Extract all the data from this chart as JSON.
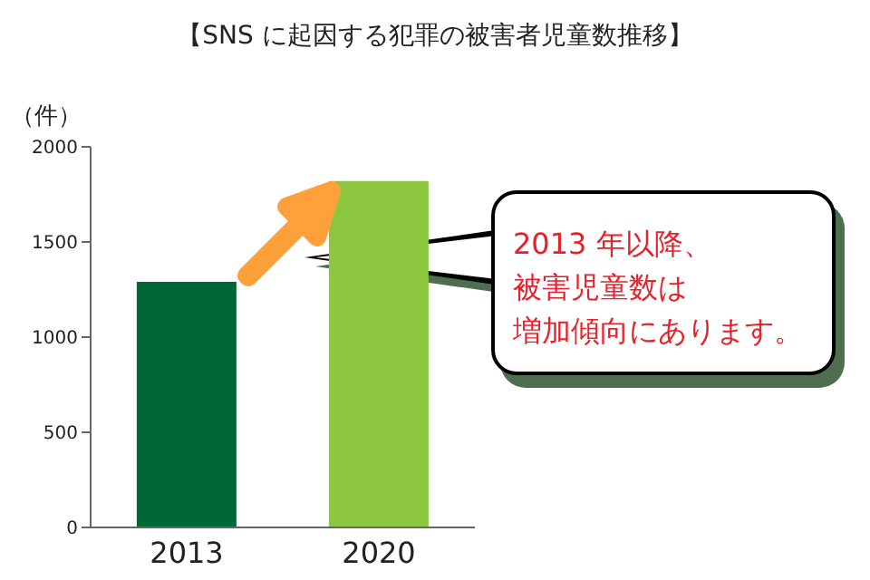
{
  "chart_data": {
    "type": "bar",
    "title": "【SNS に起因する犯罪の被害者児童数推移】",
    "ylabel": "（件）",
    "categories": [
      "2013",
      "2020"
    ],
    "values": [
      1290,
      1820
    ],
    "colors": [
      "#006837",
      "#8dc63f"
    ],
    "ylim": [
      0,
      2000
    ],
    "yticks": [
      0,
      500,
      1000,
      1500,
      2000
    ],
    "annotations": [
      "2013 年以降、",
      "被害児童数は",
      "増加傾向にあります。"
    ]
  }
}
